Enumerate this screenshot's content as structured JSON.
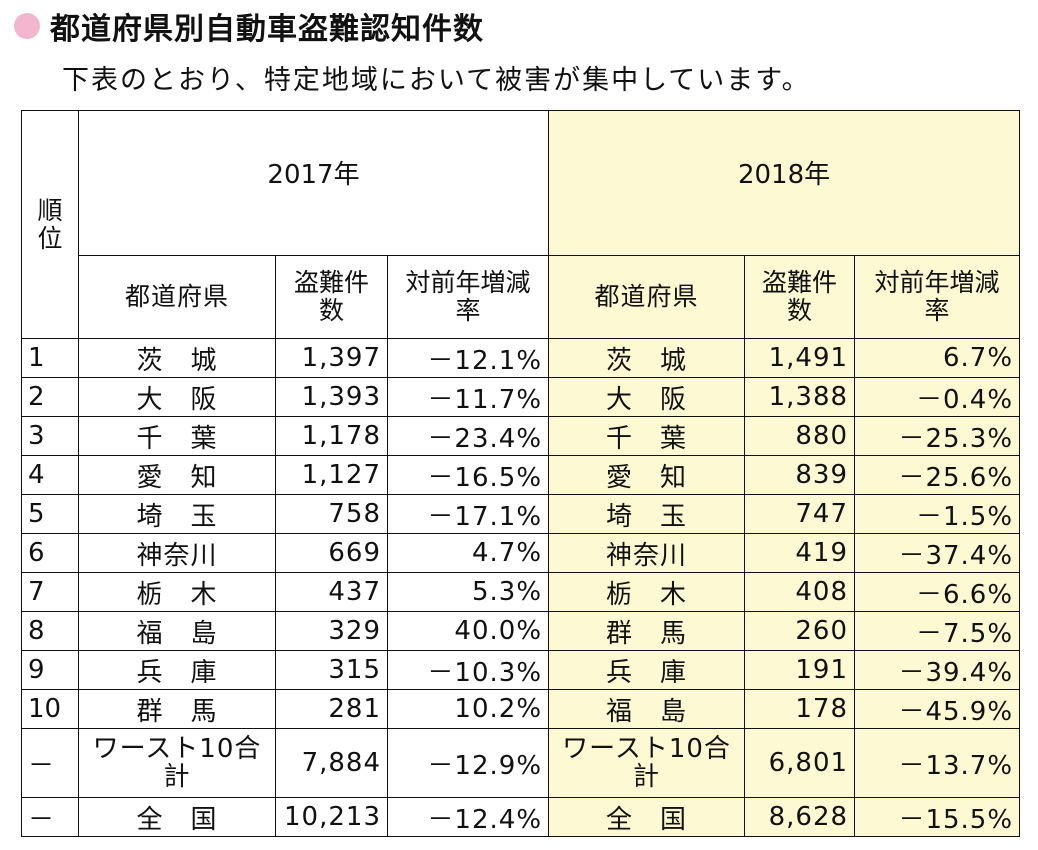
{
  "title": "都道府県別自動車盗難認知件数",
  "subtitle": "下表のとおり、特定地域において被害が集中しています。",
  "headers": {
    "rank": "順位",
    "year_2017": "2017年",
    "year_2018": "2018年",
    "prefecture": "都道府県",
    "thefts": "盗難件数",
    "yoy_change": "対前年増減率"
  },
  "colors": {
    "bullet": "#f2b6cf",
    "highlight_2018": "#fdf9d3"
  },
  "rows": [
    {
      "rank": "1",
      "pref2017": "茨　城",
      "thefts2017": "1,397",
      "yoy2017": "－12.1%",
      "pref2018": "茨　城",
      "thefts2018": "1,491",
      "yoy2018": "6.7%"
    },
    {
      "rank": "2",
      "pref2017": "大　阪",
      "thefts2017": "1,393",
      "yoy2017": "－11.7%",
      "pref2018": "大　阪",
      "thefts2018": "1,388",
      "yoy2018": "－0.4%"
    },
    {
      "rank": "3",
      "pref2017": "千　葉",
      "thefts2017": "1,178",
      "yoy2017": "－23.4%",
      "pref2018": "千　葉",
      "thefts2018": "880",
      "yoy2018": "－25.3%"
    },
    {
      "rank": "4",
      "pref2017": "愛　知",
      "thefts2017": "1,127",
      "yoy2017": "－16.5%",
      "pref2018": "愛　知",
      "thefts2018": "839",
      "yoy2018": "－25.6%"
    },
    {
      "rank": "5",
      "pref2017": "埼　玉",
      "thefts2017": "758",
      "yoy2017": "－17.1%",
      "pref2018": "埼　玉",
      "thefts2018": "747",
      "yoy2018": "－1.5%"
    },
    {
      "rank": "6",
      "pref2017": "神奈川",
      "thefts2017": "669",
      "yoy2017": "4.7%",
      "pref2018": "神奈川",
      "thefts2018": "419",
      "yoy2018": "－37.4%"
    },
    {
      "rank": "7",
      "pref2017": "栃　木",
      "thefts2017": "437",
      "yoy2017": "5.3%",
      "pref2018": "栃　木",
      "thefts2018": "408",
      "yoy2018": "－6.6%"
    },
    {
      "rank": "8",
      "pref2017": "福　島",
      "thefts2017": "329",
      "yoy2017": "40.0%",
      "pref2018": "群　馬",
      "thefts2018": "260",
      "yoy2018": "－7.5%"
    },
    {
      "rank": "9",
      "pref2017": "兵　庫",
      "thefts2017": "315",
      "yoy2017": "－10.3%",
      "pref2018": "兵　庫",
      "thefts2018": "191",
      "yoy2018": "－39.4%"
    },
    {
      "rank": "10",
      "pref2017": "群　馬",
      "thefts2017": "281",
      "yoy2017": "10.2%",
      "pref2018": "福　島",
      "thefts2018": "178",
      "yoy2018": "－45.9%"
    },
    {
      "rank": "－",
      "pref2017": "ワースト10合計",
      "thefts2017": "7,884",
      "yoy2017": "－12.9%",
      "pref2018": "ワースト10合計",
      "thefts2018": "6,801",
      "yoy2018": "－13.7%"
    },
    {
      "rank": "－",
      "pref2017": "全　国",
      "thefts2017": "10,213",
      "yoy2017": "－12.4%",
      "pref2018": "全　国",
      "thefts2018": "8,628",
      "yoy2018": "－15.5%"
    }
  ]
}
